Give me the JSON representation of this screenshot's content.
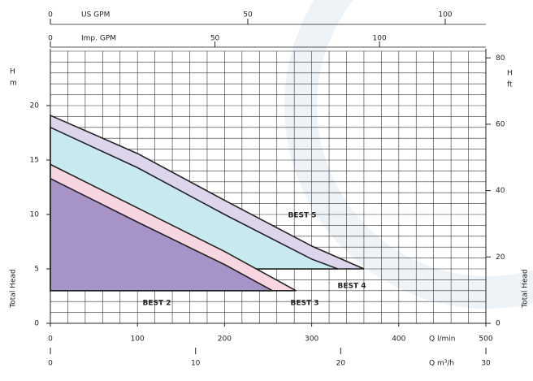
{
  "chart_data": {
    "type": "pump-curves",
    "ylabel": [
      "H",
      "m"
    ],
    "y2label": [
      "H",
      "ft"
    ],
    "side_label": "Total Head",
    "xlabel": "Q  l/min",
    "xlim": [
      0,
      500
    ],
    "xticks": [
      0,
      100,
      200,
      300,
      400,
      500
    ],
    "ylim": [
      0,
      25
    ],
    "yticks": [
      0,
      5,
      10,
      15,
      20
    ],
    "y2lim": [
      0,
      82.02
    ],
    "y2ticks": [
      0,
      20,
      40,
      60,
      80
    ],
    "grid": {
      "x_step": 20,
      "y_step": 1
    },
    "extra_x_axes": [
      {
        "label": "US GPM",
        "position": "top",
        "lim": [
          0,
          110.3
        ],
        "ticks": [
          0,
          50,
          100
        ]
      },
      {
        "label": "Imp. GPM",
        "position": "top",
        "lim": [
          0,
          132.3
        ],
        "ticks": [
          0,
          50,
          100
        ]
      },
      {
        "label": "Q  m³/h",
        "position": "bottom",
        "lim": [
          0,
          30
        ],
        "ticks": [
          0,
          10,
          20,
          30
        ]
      }
    ],
    "series": [
      {
        "name": "BEST 5",
        "color": "#dcd5ec",
        "x": [
          0,
          100,
          200,
          300,
          360
        ],
        "values": [
          19.1,
          15.6,
          11.3,
          7.1,
          5
        ]
      },
      {
        "name": "BEST 4",
        "color": "#c8e9f0",
        "x": [
          0,
          100,
          200,
          300,
          330
        ],
        "values": [
          18,
          14.3,
          10,
          5.9,
          5
        ]
      },
      {
        "name": "BEST 3",
        "color": "#f7d5e1",
        "x": [
          0,
          100,
          200,
          282
        ],
        "values": [
          14.6,
          10.6,
          6.6,
          3
        ]
      },
      {
        "name": "BEST 2",
        "color": "#a694c9",
        "x": [
          0,
          100,
          200,
          255
        ],
        "values": [
          13.3,
          9.3,
          5.4,
          3
        ]
      }
    ]
  }
}
